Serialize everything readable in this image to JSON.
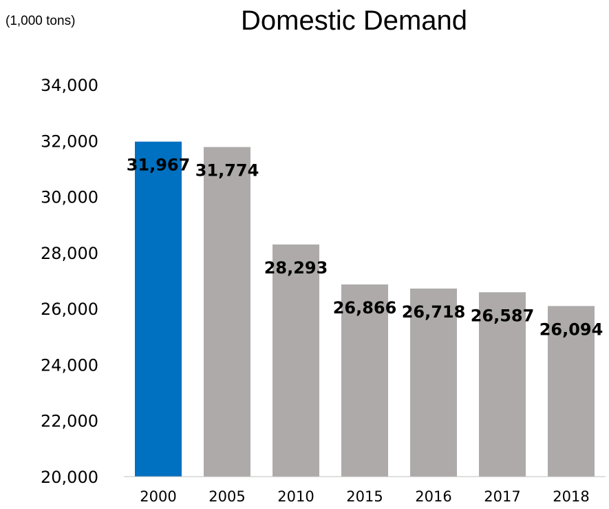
{
  "header": {
    "unit": "(1,000 tons)",
    "title": "Domestic Demand"
  },
  "chart_data": {
    "type": "bar",
    "title": "Domestic Demand",
    "ylabel": "(1,000 tons)",
    "xlabel": "",
    "categories": [
      "2000",
      "2005",
      "2010",
      "2015",
      "2016",
      "2017",
      "2018"
    ],
    "values": [
      31967,
      31774,
      28293,
      26866,
      26718,
      26587,
      26094
    ],
    "data_labels": [
      "31,967",
      "31,774",
      "28,293",
      "26,866",
      "26,718",
      "26,587",
      "26,094"
    ],
    "ylim": [
      20000,
      34000
    ],
    "yticks": [
      20000,
      22000,
      24000,
      26000,
      28000,
      30000,
      32000,
      34000
    ],
    "ytick_labels": [
      "20,000",
      "22,000",
      "24,000",
      "26,000",
      "28,000",
      "30,000",
      "32,000",
      "34,000"
    ],
    "grid": false,
    "legend": "none",
    "colors": {
      "highlight": "#0070C0",
      "default": "#AEAAAA",
      "axis": "#BFBFBF"
    },
    "highlight_index": 0
  }
}
